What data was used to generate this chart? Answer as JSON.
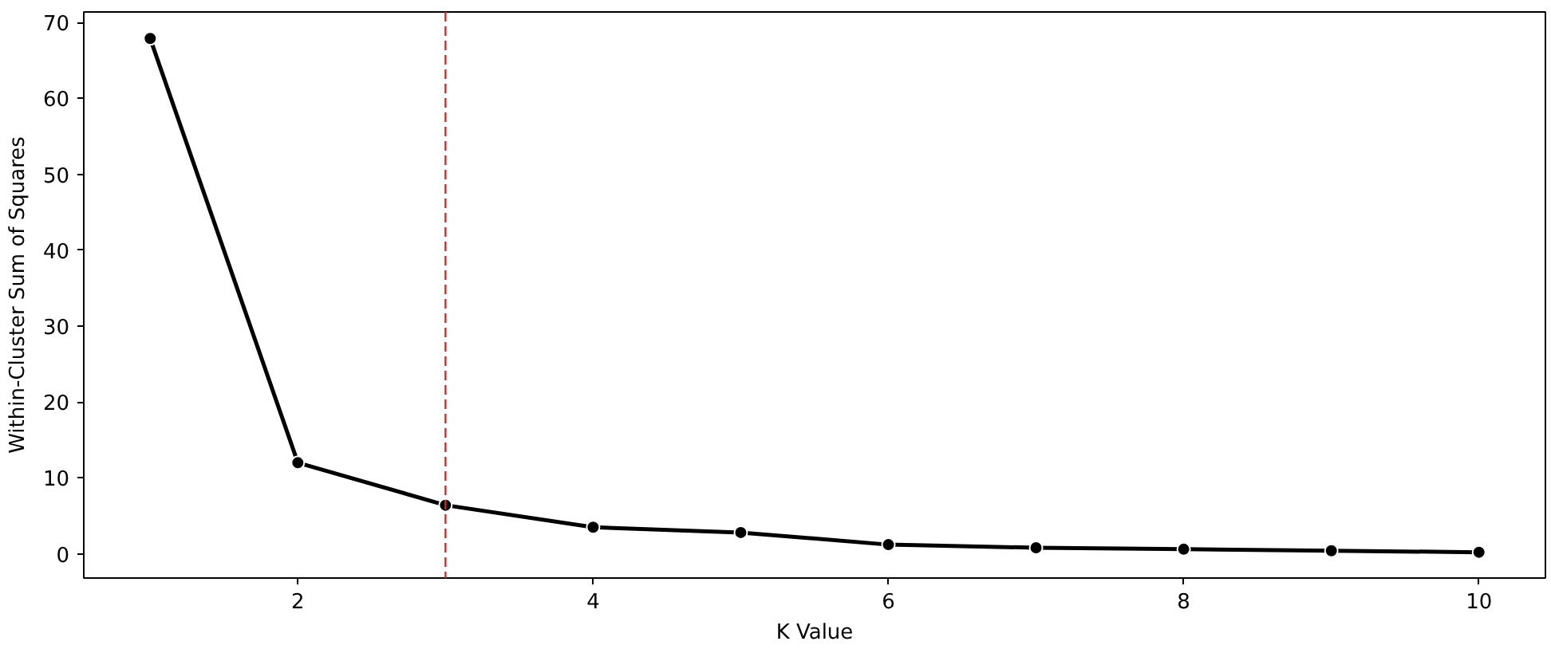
{
  "chart_data": {
    "type": "line",
    "xlabel": "K Value",
    "ylabel": "Within-Cluster Sum of Squares",
    "x": [
      1,
      2,
      3,
      4,
      5,
      6,
      7,
      8,
      9,
      10
    ],
    "series": [
      {
        "color": "#000000",
        "values": [
          67.9,
          12.0,
          6.4,
          3.5,
          2.8,
          1.2,
          0.8,
          0.6,
          0.4,
          0.2
        ]
      }
    ],
    "xlim": [
      0.55,
      10.45
    ],
    "ylim": [
      -3.2,
      71.4
    ],
    "xticks": [
      2,
      4,
      6,
      8,
      10
    ],
    "yticks": [
      0,
      10,
      20,
      30,
      40,
      50,
      60,
      70
    ],
    "ref_lines": [
      {
        "axis": "x",
        "value": 3,
        "color": "#d62728",
        "line_style": "dashed"
      }
    ],
    "marker": "circle",
    "line_style": "solid",
    "grid": false
  }
}
